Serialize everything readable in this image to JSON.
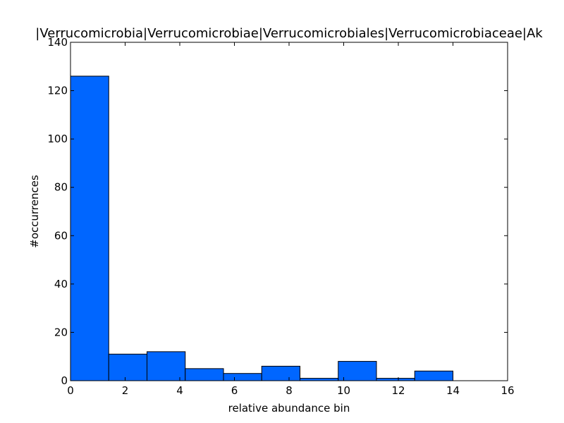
{
  "chart_data": {
    "type": "bar",
    "title": "|Verrucomicrobia|Verrucomicrobiae|Verrucomicrobiales|Verrucomicrobiaceae|Ak",
    "xlabel": "relative abundance bin",
    "ylabel": "#occurrences",
    "xlim": [
      0,
      16
    ],
    "ylim": [
      0,
      140
    ],
    "xticks": [
      0,
      2,
      4,
      6,
      8,
      10,
      12,
      14,
      16
    ],
    "yticks": [
      0,
      20,
      40,
      60,
      80,
      100,
      120,
      140
    ],
    "bin_edges": [
      0,
      1.4,
      2.8,
      4.2,
      5.6,
      7.0,
      8.4,
      9.8,
      11.2,
      12.6,
      14.0
    ],
    "values": [
      126,
      11,
      12,
      5,
      3,
      6,
      1,
      8,
      1,
      4
    ],
    "bar_color": "#0066ff",
    "edge_color": "#000000",
    "grid": false,
    "legend": "none"
  }
}
